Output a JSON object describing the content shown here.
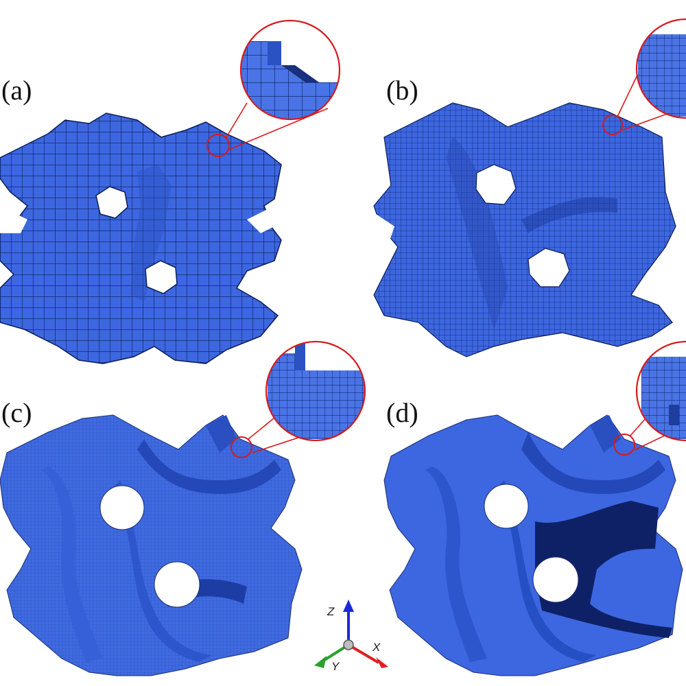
{
  "figure": {
    "panels": [
      {
        "label": "(a)",
        "resolution": "coarse"
      },
      {
        "label": "(b)",
        "resolution": "medium"
      },
      {
        "label": "(c)",
        "resolution": "fine"
      },
      {
        "label": "(d)",
        "resolution": "finest"
      }
    ],
    "triad": {
      "z": "Z",
      "x": "X",
      "y": "Y"
    },
    "colors": {
      "voxel_face": "#3d67e0",
      "voxel_dark": "#1d3ea8",
      "voxel_shadow": "#12245f",
      "grid_line": "#0a1a55",
      "zoom_circle": "#d7191c",
      "axis_x": "#e02020",
      "axis_y": "#2aa02a",
      "axis_z": "#1a2ad8"
    }
  }
}
